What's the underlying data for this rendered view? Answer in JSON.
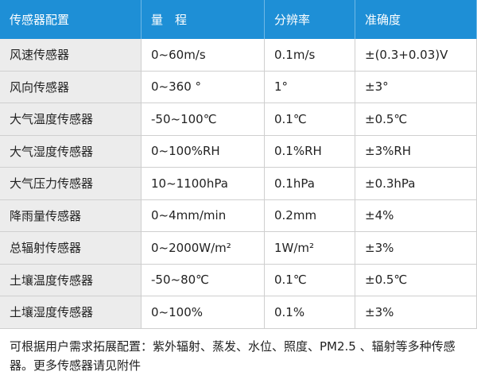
{
  "table": {
    "header": [
      "传感器配置",
      "量　程",
      "分辨率",
      "准确度"
    ],
    "rows": [
      [
        "风速传感器",
        "0~60m/s",
        "0.1m/s",
        "±(0.3+0.03)V"
      ],
      [
        "风向传感器",
        "0~360 °",
        "1°",
        "±3°"
      ],
      [
        "大气温度传感器",
        "-50~100℃",
        "0.1℃",
        "±0.5℃"
      ],
      [
        "大气湿度传感器",
        "0~100%RH",
        "0.1%RH",
        "±3%RH"
      ],
      [
        "大气压力传感器",
        "10~1100hPa",
        "0.1hPa",
        "±0.3hPa"
      ],
      [
        "降雨量传感器",
        "0~4mm/min",
        "0.2mm",
        "±4%"
      ],
      [
        "总辐射传感器",
        "0~2000W/m²",
        "1W/m²",
        "±3%"
      ],
      [
        "土壤温度传感器",
        "-50~80℃",
        "0.1℃",
        "±0.5℃"
      ],
      [
        "土壤湿度传感器",
        "0~100%",
        "0.1%",
        "±3%"
      ]
    ],
    "note": "可根据用户需求拓展配置：紫外辐射、蒸发、水位、照度、PM2.5 、辐射等多种传感器。更多传感器请见附件"
  }
}
